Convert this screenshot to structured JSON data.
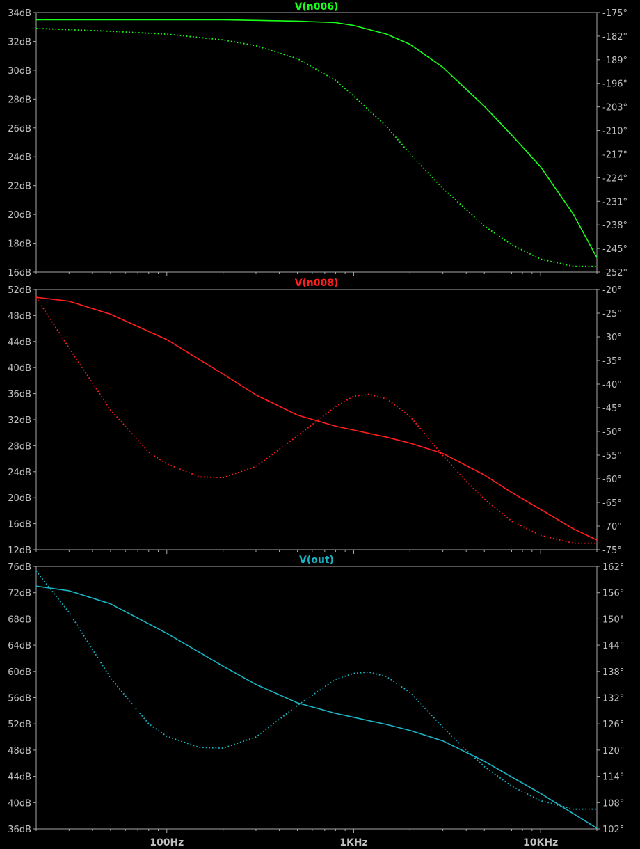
{
  "chart_data": [
    {
      "type": "line",
      "title": "V(n006)",
      "color": "#19ff19",
      "x_scale": "log",
      "xlim": [
        20,
        20000
      ],
      "ylim_left": [
        16,
        34
      ],
      "yticks_left": [
        16,
        18,
        20,
        22,
        24,
        26,
        28,
        30,
        32,
        34
      ],
      "ytick_labels_left": [
        "16dB",
        "18dB",
        "20dB",
        "22dB",
        "24dB",
        "26dB",
        "28dB",
        "30dB",
        "32dB",
        "34dB"
      ],
      "ylim_right": [
        -252,
        -175
      ],
      "yticks_right": [
        -252,
        -245,
        -238,
        -231,
        -224,
        -217,
        -210,
        -203,
        -196,
        -189,
        -182,
        -175
      ],
      "ytick_labels_right": [
        "-252°",
        "-245°",
        "-238°",
        "-231°",
        "-224°",
        "-217°",
        "-210°",
        "-203°",
        "-196°",
        "-189°",
        "-182°",
        "-175°"
      ],
      "series": [
        {
          "style": "solid",
          "axis": "left",
          "x": [
            20,
            50,
            100,
            200,
            500,
            800,
            1000,
            1500,
            2000,
            3000,
            5000,
            7000,
            10000,
            15000,
            20000
          ],
          "y": [
            33.5,
            33.5,
            33.5,
            33.5,
            33.4,
            33.3,
            33.1,
            32.5,
            31.8,
            30.2,
            27.5,
            25.5,
            23.3,
            20.0,
            17.0
          ]
        },
        {
          "style": "dotted",
          "axis": "left",
          "x": [
            20,
            50,
            100,
            200,
            300,
            500,
            800,
            1000,
            1500,
            2000,
            3000,
            5000,
            7000,
            10000,
            15000,
            20000
          ],
          "y": [
            32.9,
            32.7,
            32.5,
            32.1,
            31.7,
            30.8,
            29.3,
            28.2,
            26.1,
            24.2,
            21.8,
            19.2,
            17.9,
            16.9,
            16.4,
            16.4
          ]
        }
      ]
    },
    {
      "type": "line",
      "title": "V(n008)",
      "color": "#ff1e1e",
      "x_scale": "log",
      "xlim": [
        20,
        20000
      ],
      "ylim_left": [
        12,
        52
      ],
      "yticks_left": [
        12,
        16,
        20,
        24,
        28,
        32,
        36,
        40,
        44,
        48,
        52
      ],
      "ytick_labels_left": [
        "12dB",
        "16dB",
        "20dB",
        "24dB",
        "28dB",
        "32dB",
        "36dB",
        "40dB",
        "44dB",
        "48dB",
        "52dB"
      ],
      "ylim_right": [
        -75,
        -20
      ],
      "yticks_right": [
        -75,
        -70,
        -65,
        -60,
        -55,
        -50,
        -45,
        -40,
        -35,
        -30,
        -25,
        -20
      ],
      "ytick_labels_right": [
        "-75°",
        "-70°",
        "-65°",
        "-60°",
        "-55°",
        "-50°",
        "-45°",
        "-40°",
        "-35°",
        "-30°",
        "-25°",
        "-20°"
      ],
      "series": [
        {
          "style": "solid",
          "axis": "left",
          "x": [
            20,
            30,
            50,
            100,
            200,
            300,
            500,
            800,
            1000,
            1500,
            2000,
            3000,
            5000,
            7000,
            10000,
            15000,
            20000
          ],
          "y": [
            50.8,
            50.2,
            48.2,
            44.3,
            39.0,
            35.8,
            32.7,
            31.0,
            30.4,
            29.3,
            28.4,
            26.8,
            23.5,
            20.8,
            18.2,
            15.2,
            13.5
          ]
        },
        {
          "style": "dotted",
          "axis": "left",
          "x": [
            20,
            30,
            50,
            80,
            100,
            150,
            200,
            300,
            500,
            800,
            1000,
            1200,
            1500,
            2000,
            3000,
            4000,
            5000,
            7000,
            10000,
            15000,
            20000
          ],
          "y": [
            50.8,
            43.0,
            33.5,
            27.0,
            25.2,
            23.2,
            23.1,
            24.8,
            29.5,
            34.0,
            35.6,
            35.9,
            35.2,
            32.5,
            26.5,
            22.5,
            19.8,
            16.4,
            14.2,
            13.0,
            13.0
          ]
        }
      ]
    },
    {
      "type": "line",
      "title": "V(out)",
      "color": "#1ab5c4",
      "x_scale": "log",
      "xlim": [
        20,
        20000
      ],
      "xticks": [
        100,
        1000,
        10000
      ],
      "xtick_labels": [
        "100Hz",
        "1KHz",
        "10KHz"
      ],
      "ylim_left": [
        36,
        76
      ],
      "yticks_left": [
        36,
        40,
        44,
        48,
        52,
        56,
        60,
        64,
        68,
        72,
        76
      ],
      "ytick_labels_left": [
        "36dB",
        "40dB",
        "44dB",
        "48dB",
        "52dB",
        "56dB",
        "60dB",
        "64dB",
        "68dB",
        "72dB",
        "76dB"
      ],
      "ylim_right": [
        102,
        162
      ],
      "yticks_right": [
        102,
        108,
        114,
        120,
        126,
        132,
        138,
        144,
        150,
        156,
        162
      ],
      "ytick_labels_right": [
        "102°",
        "108°",
        "114°",
        "120°",
        "126°",
        "132°",
        "138°",
        "144°",
        "150°",
        "156°",
        "162°"
      ],
      "series": [
        {
          "style": "solid",
          "axis": "left",
          "x": [
            20,
            30,
            50,
            100,
            200,
            300,
            500,
            800,
            1000,
            1500,
            2000,
            3000,
            5000,
            7000,
            10000,
            15000,
            20000
          ],
          "y": [
            73.0,
            72.3,
            70.3,
            65.8,
            60.8,
            58.0,
            55.2,
            53.6,
            53.0,
            51.9,
            51.0,
            49.4,
            46.3,
            43.9,
            41.4,
            38.3,
            36.1
          ]
        },
        {
          "style": "dotted",
          "axis": "left",
          "x": [
            20,
            30,
            50,
            80,
            100,
            150,
            200,
            300,
            500,
            800,
            1000,
            1200,
            1500,
            2000,
            3000,
            4000,
            5000,
            7000,
            10000,
            15000,
            20000
          ],
          "y": [
            75.3,
            69.0,
            59.0,
            52.0,
            50.1,
            48.4,
            48.3,
            50.0,
            54.8,
            58.8,
            59.7,
            59.9,
            59.2,
            56.8,
            51.5,
            48.0,
            45.5,
            42.5,
            40.3,
            39.0,
            39.0
          ]
        }
      ]
    }
  ]
}
